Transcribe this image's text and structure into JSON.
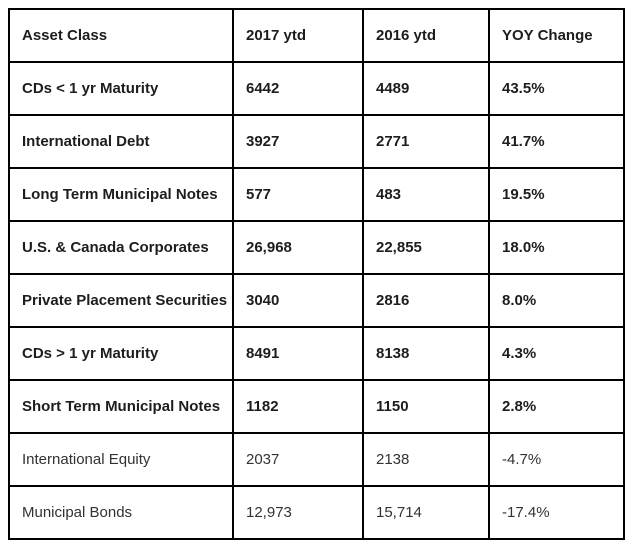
{
  "colors": {
    "border": "#000000",
    "header_text": "#1d1d1d",
    "bold_row_text": "#1d1d1d",
    "regular_row_text": "#323232",
    "background": "#ffffff"
  },
  "chart_data": {
    "type": "table",
    "title": "",
    "columns": [
      "Asset Class",
      "2017 ytd",
      "2016 ytd",
      "YOY Change"
    ],
    "rows": [
      {
        "asset": "CDs < 1 yr Maturity",
        "y2017": "6442",
        "y2016": "4489",
        "yoy": "43.5%",
        "bold": true
      },
      {
        "asset": "International Debt",
        "y2017": "3927",
        "y2016": "2771",
        "yoy": "41.7%",
        "bold": true
      },
      {
        "asset": "Long Term Municipal Notes",
        "y2017": "577",
        "y2016": "483",
        "yoy": "19.5%",
        "bold": true
      },
      {
        "asset": "U.S. & Canada Corporates",
        "y2017": "26,968",
        "y2016": "22,855",
        "yoy": "18.0%",
        "bold": true
      },
      {
        "asset": "Private Placement Securities",
        "y2017": "3040",
        "y2016": "2816",
        "yoy": "8.0%",
        "bold": true
      },
      {
        "asset": "CDs > 1 yr Maturity",
        "y2017": "8491",
        "y2016": "8138",
        "yoy": "4.3%",
        "bold": true
      },
      {
        "asset": "Short Term Municipal Notes",
        "y2017": "1182",
        "y2016": "1150",
        "yoy": "2.8%",
        "bold": true
      },
      {
        "asset": "International Equity",
        "y2017": "2037",
        "y2016": "2138",
        "yoy": "-4.7%",
        "bold": false
      },
      {
        "asset": "Municipal Bonds",
        "y2017": "12,973",
        "y2016": "15,714",
        "yoy": "-17.4%",
        "bold": false
      }
    ]
  }
}
